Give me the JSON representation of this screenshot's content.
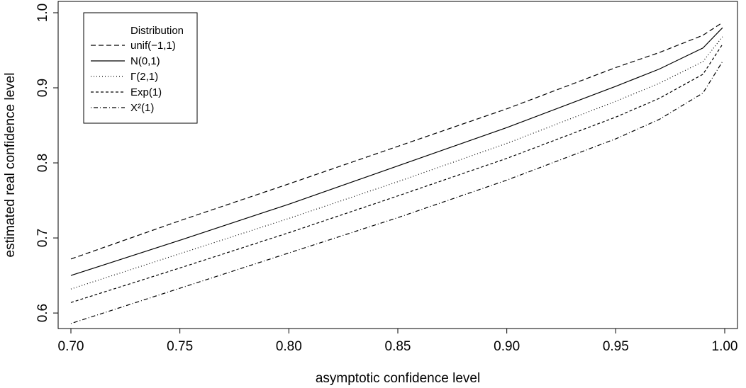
{
  "chart_data": {
    "type": "line",
    "xlabel": "asymptotic confidence level",
    "ylabel": "estimated real confidence level",
    "xlim": [
      0.7,
      1.0
    ],
    "ylim": [
      0.585,
      1.0
    ],
    "x_ticks": [
      "0.70",
      "0.75",
      "0.80",
      "0.85",
      "0.90",
      "0.95",
      "1.00"
    ],
    "y_ticks": [
      "0.6",
      "0.7",
      "0.8",
      "0.9",
      "1.0"
    ],
    "grid": false,
    "legend": {
      "title": "Distribution",
      "placement": "top-left"
    },
    "x": [
      0.7,
      0.75,
      0.8,
      0.85,
      0.9,
      0.95,
      0.97,
      0.99,
      0.999
    ],
    "series": [
      {
        "name": "unif(−1,1)",
        "dash": "dashed",
        "values": [
          0.672,
          0.723,
          0.772,
          0.822,
          0.872,
          0.927,
          0.947,
          0.97,
          0.987
        ]
      },
      {
        "name": "N(0,1)",
        "dash": "solid",
        "values": [
          0.65,
          0.697,
          0.745,
          0.796,
          0.847,
          0.902,
          0.925,
          0.953,
          0.98
        ]
      },
      {
        "name": "Γ(2,1)",
        "dash": "dotted",
        "values": [
          0.632,
          0.679,
          0.726,
          0.775,
          0.826,
          0.882,
          0.906,
          0.935,
          0.968
        ]
      },
      {
        "name": "Exp(1)",
        "dash": "shortdash",
        "values": [
          0.614,
          0.66,
          0.707,
          0.756,
          0.806,
          0.861,
          0.886,
          0.918,
          0.958
        ]
      },
      {
        "name": "X²(1)",
        "dash": "dotdash",
        "values": [
          0.586,
          0.633,
          0.68,
          0.727,
          0.777,
          0.832,
          0.858,
          0.893,
          0.935
        ]
      }
    ]
  }
}
